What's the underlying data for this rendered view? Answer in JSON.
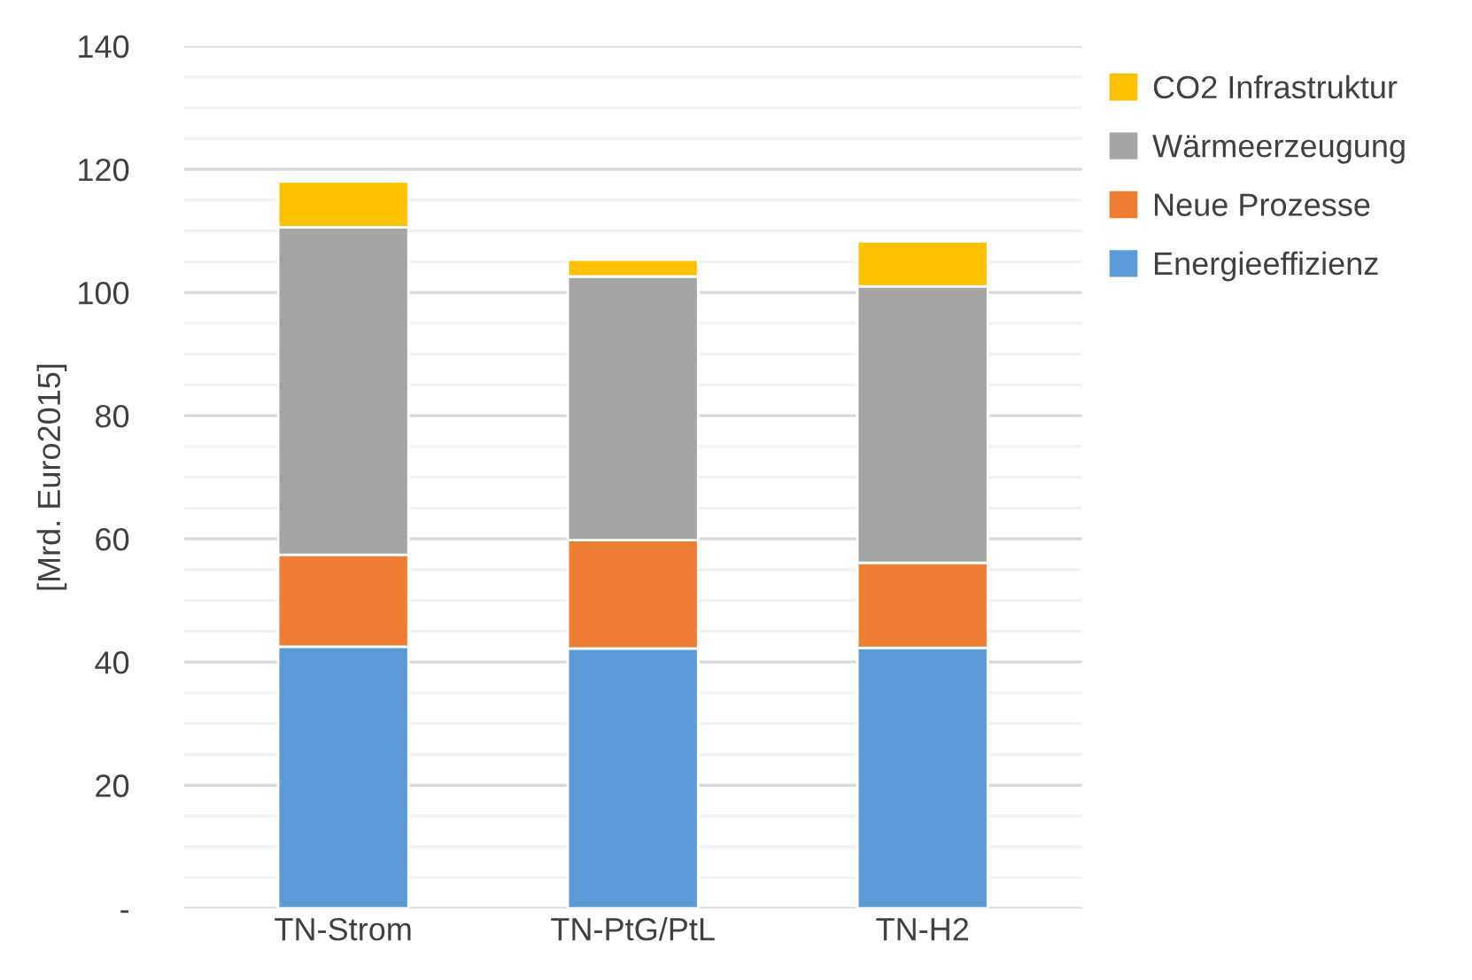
{
  "chart_data": {
    "type": "bar",
    "stacked": true,
    "ylabel": "[Mrd. Euro2015]",
    "categories": [
      "TN-Strom",
      "TN-PtG/PtL",
      "TN-H2"
    ],
    "series": [
      {
        "name": "Energieeffizienz",
        "color": "#5b9bd5",
        "values": [
          42.5,
          42.2,
          42.3
        ]
      },
      {
        "name": "Neue Prozesse",
        "color": "#ed7d31",
        "values": [
          14.9,
          17.6,
          13.8
        ]
      },
      {
        "name": "Wärmeerzeugung",
        "color": "#a5a5a5",
        "values": [
          53.2,
          42.8,
          44.9
        ]
      },
      {
        "name": "CO2 Infrastruktur",
        "color": "#ffc000",
        "values": [
          7.4,
          2.7,
          7.3
        ]
      }
    ],
    "ylim": [
      0,
      140
    ],
    "yticks": [
      {
        "value": 0,
        "label": "-"
      },
      {
        "value": 5,
        "label": null
      },
      {
        "value": 10,
        "label": null
      },
      {
        "value": 15,
        "label": null
      },
      20,
      {
        "value": 25,
        "label": null
      },
      {
        "value": 30,
        "label": null
      },
      {
        "value": 35,
        "label": null
      },
      40,
      {
        "value": 45,
        "label": null
      },
      {
        "value": 50,
        "label": null
      },
      {
        "value": 55,
        "label": null
      },
      60,
      {
        "value": 65,
        "label": null
      },
      {
        "value": 70,
        "label": null
      },
      {
        "value": 75,
        "label": null
      },
      80,
      {
        "value": 85,
        "label": null
      },
      {
        "value": 90,
        "label": null
      },
      {
        "value": 95,
        "label": null
      },
      100,
      {
        "value": 105,
        "label": null
      },
      {
        "value": 110,
        "label": null
      },
      {
        "value": 115,
        "label": null
      },
      120,
      {
        "value": 125,
        "label": null
      },
      {
        "value": 130,
        "label": null
      },
      {
        "value": 135,
        "label": null
      },
      140
    ],
    "grid": "y",
    "legend": "right"
  }
}
